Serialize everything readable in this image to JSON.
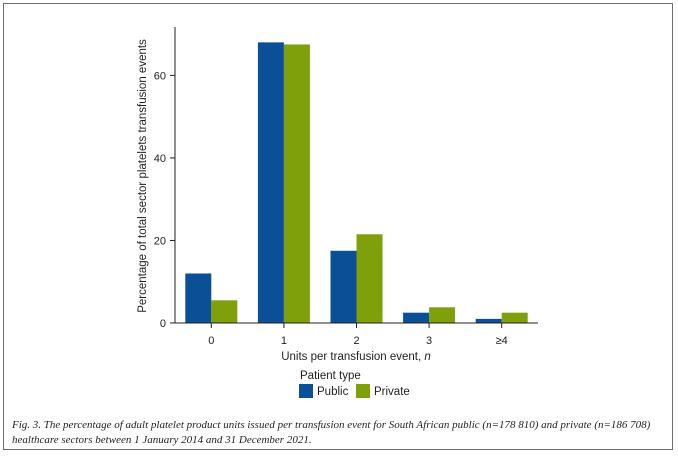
{
  "chart_data": {
    "type": "bar",
    "categories": [
      "0",
      "1",
      "2",
      "3",
      "≥4"
    ],
    "series": [
      {
        "name": "Public",
        "color": "#0b4f96",
        "values": [
          12,
          68,
          17.5,
          2.5,
          1
        ]
      },
      {
        "name": "Private",
        "color": "#7f9f0b",
        "values": [
          5.5,
          67.5,
          21.5,
          3.8,
          2.5
        ]
      }
    ],
    "ylabel": "Percentage of total sector platelets transfusion events",
    "xlabel": "Units per transfusion event, ",
    "xlabel_italic": "n",
    "ylim": [
      0,
      71
    ],
    "yticks": [
      0,
      20,
      40,
      60
    ],
    "legend_title": "Patient type",
    "legend_position": "bottom-center"
  },
  "caption": "Fig. 3. The percentage of adult platelet product units issued per transfusion event for South African public (n=178 810) and private (n=186 708) healthcare sectors between 1 January 2014 and 31 December 2021."
}
